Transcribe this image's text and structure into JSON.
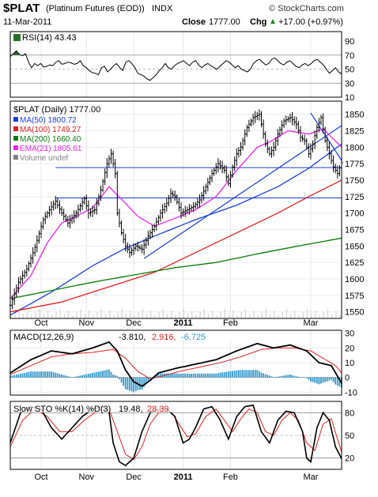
{
  "header": {
    "symbol": "$PLAT",
    "name": "(Platinum Futures (EOD))",
    "exchange": "INDX",
    "date": "11-Mar-2011",
    "watermark": "© StockCharts.com",
    "close_label": "Close",
    "close_value": "1777.00",
    "chg_label": "Chg",
    "chg_value": "+17.00 (+0.97%)",
    "chg_arrow": "▲"
  },
  "colors": {
    "price": "#000000",
    "ma50": "#1a3fd6",
    "ma100": "#e02020",
    "ma200": "#0a7a0a",
    "ema21": "#ee22ee",
    "volume": "#808080",
    "trendline": "#1a3fd6",
    "macd_hist": "#3399cc",
    "rsi_fill": "#2a6e2a"
  },
  "chart_data": [
    {
      "type": "line",
      "panel": "rsi",
      "title": "RSI(14) 43.43",
      "yticks": [
        10,
        30,
        50,
        70,
        90
      ],
      "ylim": [
        10,
        90
      ],
      "levels": [
        30,
        70
      ],
      "series": [
        {
          "name": "RSI(14)",
          "last": 43.43,
          "values": [
            68,
            72,
            76,
            71,
            69,
            72,
            60,
            52,
            58,
            55,
            58,
            53,
            54,
            56,
            55,
            60,
            62,
            57,
            58,
            60,
            59,
            57,
            58,
            62,
            55,
            52,
            48,
            45,
            44,
            42,
            52,
            54,
            46,
            50,
            55,
            58,
            52,
            48,
            60,
            62,
            58,
            52,
            44,
            42,
            40,
            36,
            34,
            38,
            42,
            48,
            52,
            58,
            52,
            50,
            55,
            58,
            60,
            62,
            58,
            55,
            60,
            62,
            56,
            52,
            56,
            58,
            55,
            52,
            50,
            54,
            58,
            62,
            60,
            56,
            52,
            55,
            50,
            48,
            46,
            50,
            58,
            62,
            64,
            60,
            56,
            58,
            64,
            66,
            62,
            58,
            56,
            60,
            62,
            58,
            54,
            52,
            56,
            58,
            55,
            58,
            62,
            64,
            60,
            56,
            50,
            44,
            48,
            52,
            46,
            43
          ]
        }
      ]
    },
    {
      "type": "line",
      "panel": "price",
      "title": "$PLAT (Daily) 1777.00",
      "legend": [
        {
          "name": "MA(50)",
          "value": "1800.72",
          "color": "#1a3fd6"
        },
        {
          "name": "MA(100)",
          "value": "1749.27",
          "color": "#e02020"
        },
        {
          "name": "MA(200)",
          "value": "1660.40",
          "color": "#0a7a0a"
        },
        {
          "name": "EMA(21)",
          "value": "1805.61",
          "color": "#ee22ee"
        },
        {
          "name": "Volume undef",
          "value": "",
          "color": "#808080"
        }
      ],
      "ylim": [
        1540,
        1870
      ],
      "yticks": [
        1550,
        1575,
        1600,
        1625,
        1650,
        1675,
        1700,
        1725,
        1750,
        1775,
        1800,
        1825,
        1850
      ],
      "xticks": [
        "Oct",
        "Nov",
        "Dec",
        "2011",
        "Feb",
        "Mar"
      ],
      "price_points": [
        [
          0,
          1560
        ],
        [
          4,
          1595
        ],
        [
          8,
          1615
        ],
        [
          12,
          1648
        ],
        [
          16,
          1690
        ],
        [
          19,
          1705
        ],
        [
          22,
          1718
        ],
        [
          25,
          1700
        ],
        [
          28,
          1685
        ],
        [
          32,
          1700
        ],
        [
          36,
          1722
        ],
        [
          38,
          1700
        ],
        [
          41,
          1705
        ],
        [
          44,
          1735
        ],
        [
          47,
          1775
        ],
        [
          49,
          1790
        ],
        [
          51,
          1760
        ],
        [
          52,
          1700
        ],
        [
          54,
          1670
        ],
        [
          56,
          1650
        ],
        [
          58,
          1640
        ],
        [
          61,
          1650
        ],
        [
          64,
          1645
        ],
        [
          67,
          1665
        ],
        [
          70,
          1680
        ],
        [
          73,
          1700
        ],
        [
          76,
          1715
        ],
        [
          78,
          1730
        ],
        [
          80,
          1725
        ],
        [
          83,
          1700
        ],
        [
          86,
          1705
        ],
        [
          89,
          1710
        ],
        [
          92,
          1720
        ],
        [
          95,
          1740
        ],
        [
          98,
          1760
        ],
        [
          101,
          1775
        ],
        [
          104,
          1765
        ],
        [
          106,
          1745
        ],
        [
          108,
          1770
        ],
        [
          110,
          1790
        ],
        [
          112,
          1800
        ],
        [
          115,
          1830
        ],
        [
          118,
          1845
        ],
        [
          121,
          1850
        ],
        [
          124,
          1805
        ],
        [
          126,
          1790
        ],
        [
          128,
          1800
        ],
        [
          130,
          1820
        ],
        [
          133,
          1840
        ],
        [
          136,
          1845
        ],
        [
          139,
          1835
        ],
        [
          141,
          1815
        ],
        [
          143,
          1810
        ],
        [
          145,
          1790
        ],
        [
          147,
          1805
        ],
        [
          149,
          1830
        ],
        [
          151,
          1845
        ],
        [
          153,
          1810
        ],
        [
          155,
          1790
        ],
        [
          157,
          1770
        ],
        [
          159,
          1760
        ],
        [
          161,
          1777
        ]
      ],
      "series": [
        {
          "name": "MA(50)",
          "points": [
            [
              0,
              1545
            ],
            [
              20,
              1580
            ],
            [
              40,
              1620
            ],
            [
              55,
              1645
            ],
            [
              70,
              1665
            ],
            [
              90,
              1690
            ],
            [
              110,
              1712
            ],
            [
              130,
              1740
            ],
            [
              145,
              1768
            ],
            [
              161,
              1805
            ]
          ]
        },
        {
          "name": "MA(100)",
          "points": [
            [
              0,
              1550
            ],
            [
              25,
              1565
            ],
            [
              50,
              1590
            ],
            [
              70,
              1610
            ],
            [
              90,
              1640
            ],
            [
              110,
              1670
            ],
            [
              130,
              1700
            ],
            [
              145,
              1725
            ],
            [
              161,
              1750
            ]
          ]
        },
        {
          "name": "MA(200)",
          "points": [
            [
              0,
              1570
            ],
            [
              40,
              1595
            ],
            [
              80,
              1617
            ],
            [
              100,
              1625
            ],
            [
              120,
              1638
            ],
            [
              140,
              1650
            ],
            [
              161,
              1662
            ]
          ]
        },
        {
          "name": "EMA(21)",
          "points": [
            [
              0,
              1570
            ],
            [
              10,
              1605
            ],
            [
              18,
              1655
            ],
            [
              25,
              1685
            ],
            [
              32,
              1695
            ],
            [
              40,
              1708
            ],
            [
              48,
              1740
            ],
            [
              55,
              1718
            ],
            [
              62,
              1695
            ],
            [
              70,
              1680
            ],
            [
              80,
              1692
            ],
            [
              90,
              1705
            ],
            [
              100,
              1725
            ],
            [
              110,
              1765
            ],
            [
              120,
              1800
            ],
            [
              126,
              1808
            ],
            [
              135,
              1825
            ],
            [
              145,
              1820
            ],
            [
              152,
              1828
            ],
            [
              161,
              1800
            ]
          ]
        }
      ],
      "hlines": [
        1723,
        1769
      ],
      "trendlines": [
        [
          [
            65,
            1631
          ],
          [
            161,
            1833
          ]
        ],
        [
          [
            146,
            1852
          ],
          [
            161,
            1780
          ]
        ]
      ]
    },
    {
      "type": "line",
      "panel": "macd",
      "title": "MACD(12,26,9)",
      "values_text": {
        "macd": "-3.810",
        "signal": "2.916",
        "hist": "-6.725"
      },
      "ylim": [
        -12,
        32
      ],
      "yticks": [
        -10,
        0,
        10,
        20,
        30
      ],
      "series": [
        {
          "name": "MACD",
          "points": [
            [
              0,
              3
            ],
            [
              10,
              12
            ],
            [
              20,
              18
            ],
            [
              30,
              16
            ],
            [
              40,
              20
            ],
            [
              48,
              24
            ],
            [
              52,
              18
            ],
            [
              56,
              5
            ],
            [
              60,
              -3
            ],
            [
              64,
              -6
            ],
            [
              68,
              -2
            ],
            [
              72,
              3
            ],
            [
              80,
              6
            ],
            [
              90,
              9
            ],
            [
              100,
              12
            ],
            [
              110,
              18
            ],
            [
              120,
              23
            ],
            [
              128,
              20
            ],
            [
              136,
              22
            ],
            [
              144,
              18
            ],
            [
              150,
              10
            ],
            [
              156,
              8
            ],
            [
              161,
              -4
            ]
          ]
        },
        {
          "name": "Signal",
          "points": [
            [
              0,
              2
            ],
            [
              10,
              8
            ],
            [
              20,
              14
            ],
            [
              30,
              16
            ],
            [
              40,
              17
            ],
            [
              50,
              19
            ],
            [
              56,
              13
            ],
            [
              62,
              4
            ],
            [
              68,
              -1
            ],
            [
              74,
              1
            ],
            [
              82,
              4
            ],
            [
              92,
              7
            ],
            [
              102,
              10
            ],
            [
              112,
              14
            ],
            [
              122,
              19
            ],
            [
              130,
              20
            ],
            [
              138,
              20
            ],
            [
              146,
              18
            ],
            [
              152,
              13
            ],
            [
              158,
              8
            ],
            [
              161,
              3
            ]
          ]
        }
      ]
    },
    {
      "type": "line",
      "panel": "stochastic",
      "title": "Slow STO %K(14) %D(3)",
      "values_text": {
        "k": "19.48",
        "d": "28.39"
      },
      "ylim": [
        5,
        95
      ],
      "yticks": [
        20,
        50,
        80
      ],
      "series": [
        {
          "name": "%K",
          "points": [
            [
              0,
              40
            ],
            [
              5,
              80
            ],
            [
              10,
              88
            ],
            [
              15,
              85
            ],
            [
              20,
              60
            ],
            [
              25,
              45
            ],
            [
              30,
              60
            ],
            [
              35,
              75
            ],
            [
              40,
              85
            ],
            [
              45,
              88
            ],
            [
              48,
              82
            ],
            [
              50,
              40
            ],
            [
              53,
              15
            ],
            [
              56,
              10
            ],
            [
              60,
              20
            ],
            [
              64,
              55
            ],
            [
              68,
              80
            ],
            [
              72,
              85
            ],
            [
              76,
              85
            ],
            [
              80,
              75
            ],
            [
              84,
              40
            ],
            [
              87,
              45
            ],
            [
              90,
              60
            ],
            [
              94,
              85
            ],
            [
              98,
              88
            ],
            [
              102,
              70
            ],
            [
              106,
              45
            ],
            [
              110,
              75
            ],
            [
              114,
              88
            ],
            [
              118,
              90
            ],
            [
              122,
              55
            ],
            [
              126,
              40
            ],
            [
              130,
              70
            ],
            [
              134,
              82
            ],
            [
              138,
              80
            ],
            [
              142,
              55
            ],
            [
              144,
              20
            ],
            [
              146,
              15
            ],
            [
              149,
              60
            ],
            [
              152,
              80
            ],
            [
              155,
              70
            ],
            [
              158,
              35
            ],
            [
              161,
              19
            ]
          ]
        },
        {
          "name": "%D",
          "points": [
            [
              0,
              35
            ],
            [
              6,
              70
            ],
            [
              12,
              85
            ],
            [
              18,
              75
            ],
            [
              24,
              55
            ],
            [
              30,
              55
            ],
            [
              36,
              70
            ],
            [
              42,
              82
            ],
            [
              48,
              85
            ],
            [
              52,
              55
            ],
            [
              56,
              25
            ],
            [
              60,
              18
            ],
            [
              64,
              35
            ],
            [
              68,
              65
            ],
            [
              72,
              80
            ],
            [
              78,
              82
            ],
            [
              82,
              65
            ],
            [
              86,
              48
            ],
            [
              90,
              52
            ],
            [
              95,
              75
            ],
            [
              100,
              85
            ],
            [
              104,
              70
            ],
            [
              108,
              55
            ],
            [
              112,
              72
            ],
            [
              116,
              85
            ],
            [
              120,
              80
            ],
            [
              124,
              55
            ],
            [
              128,
              50
            ],
            [
              132,
              70
            ],
            [
              136,
              80
            ],
            [
              140,
              70
            ],
            [
              144,
              40
            ],
            [
              148,
              30
            ],
            [
              152,
              65
            ],
            [
              156,
              72
            ],
            [
              159,
              45
            ],
            [
              161,
              28
            ]
          ]
        }
      ]
    }
  ]
}
